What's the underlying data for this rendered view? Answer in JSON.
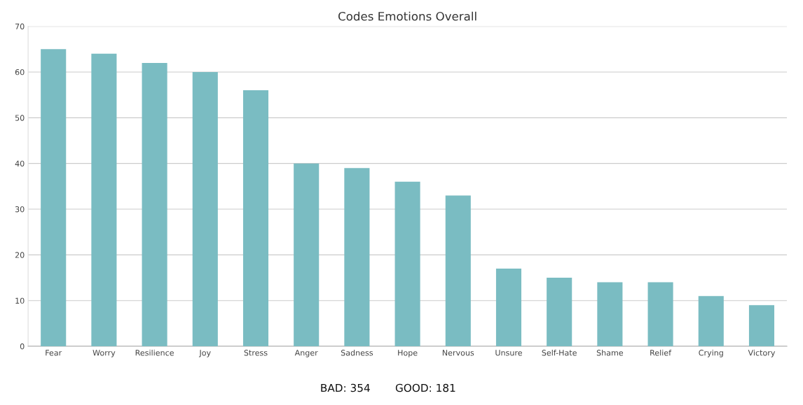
{
  "chart_data": {
    "type": "bar",
    "title": "Codes Emotions Overall",
    "categories": [
      "Fear",
      "Worry",
      "Resilience",
      "Joy",
      "Stress",
      "Anger",
      "Sadness",
      "Hope",
      "Nervous",
      "Unsure",
      "Self-Hate",
      "Shame",
      "Relief",
      "Crying",
      "Victory"
    ],
    "values": [
      65,
      64,
      62,
      60,
      56,
      40,
      39,
      36,
      33,
      17,
      15,
      14,
      14,
      11,
      9
    ],
    "color": "#7abcc2",
    "ylim": [
      0,
      70
    ],
    "yticks": [
      0,
      10,
      20,
      30,
      40,
      50,
      60,
      70
    ],
    "grid": "y",
    "annotations": [
      "BAD: 354",
      "GOOD: 181"
    ]
  }
}
